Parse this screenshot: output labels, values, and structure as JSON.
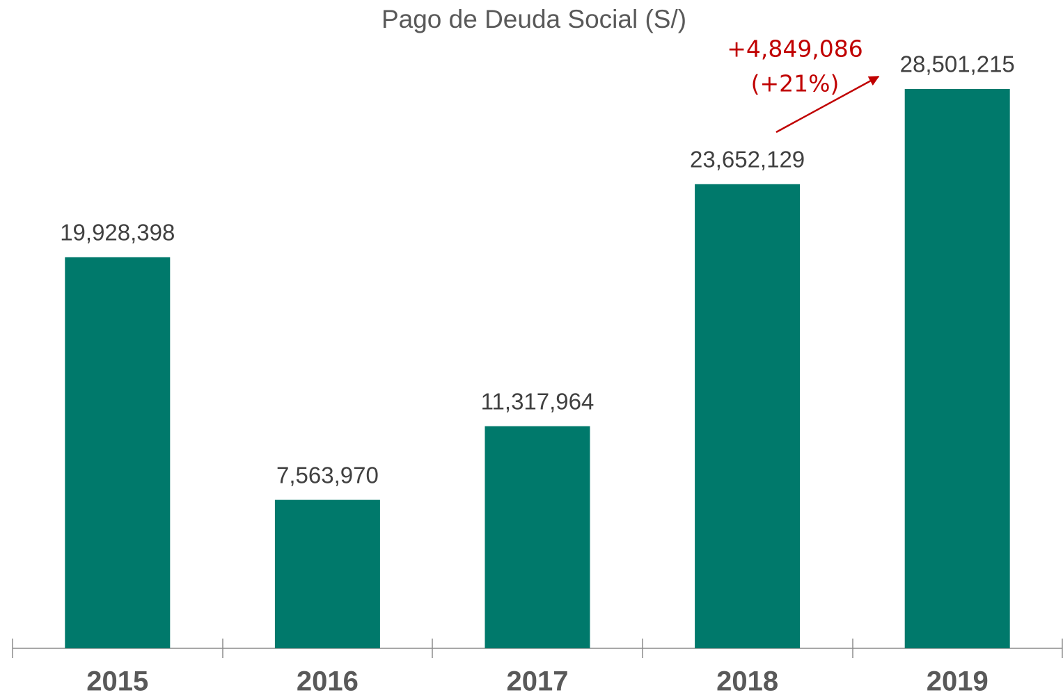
{
  "chart_data": {
    "type": "bar",
    "title": "Pago de Deuda Social (S/)",
    "categories": [
      "2015",
      "2016",
      "2017",
      "2018",
      "2019"
    ],
    "values": [
      19928398,
      7563970,
      11317964,
      23652129,
      28501215
    ],
    "value_labels": [
      "19,928,398",
      "7,563,970",
      "11,317,964",
      "23,652,129",
      "28,501,215"
    ],
    "color": "#00796b",
    "annotations": [
      "+4,849,086",
      "(+21%)"
    ]
  }
}
